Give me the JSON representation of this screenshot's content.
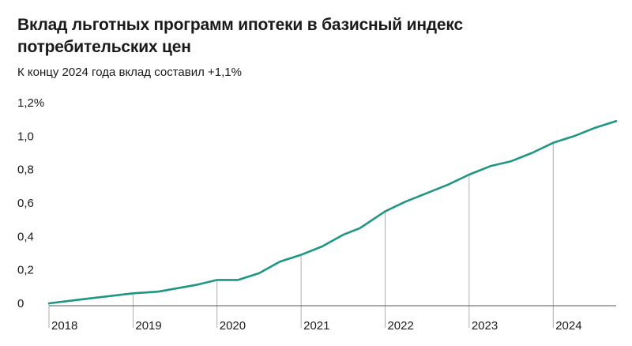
{
  "header": {
    "title": "Вклад льготных программ ипотеки в базисный индекс потребительских цен",
    "subtitle": "К концу 2024 года вклад составил +1,1%"
  },
  "colors": {
    "line": "#1f9683",
    "axis": "#555555",
    "grid": "#9a9a9a"
  },
  "chart_data": {
    "type": "line",
    "title": "Вклад льготных программ ипотеки в базисный индекс потребительских цен",
    "subtitle": "К концу 2024 года вклад составил +1,1%",
    "xlabel": "",
    "ylabel": "",
    "ylim": [
      0,
      1.2
    ],
    "xlim": [
      2018,
      2024.75
    ],
    "y_ticks": [
      {
        "value": 0,
        "label": "0"
      },
      {
        "value": 0.2,
        "label": "0,2"
      },
      {
        "value": 0.4,
        "label": "0,4"
      },
      {
        "value": 0.6,
        "label": "0,6"
      },
      {
        "value": 0.8,
        "label": "0,8"
      },
      {
        "value": 1.0,
        "label": "1,0"
      },
      {
        "value": 1.2,
        "label": "1,2%"
      }
    ],
    "x_ticks": [
      {
        "value": 2018,
        "label": "2018"
      },
      {
        "value": 2019,
        "label": "2019"
      },
      {
        "value": 2020,
        "label": "2020"
      },
      {
        "value": 2021,
        "label": "2021"
      },
      {
        "value": 2022,
        "label": "2022"
      },
      {
        "value": 2023,
        "label": "2023"
      },
      {
        "value": 2024,
        "label": "2024"
      }
    ],
    "series": [
      {
        "name": "Вклад льготных программ ипотеки",
        "x": [
          2018,
          2018.5,
          2019,
          2019.3,
          2019.75,
          2020,
          2020.25,
          2020.5,
          2020.75,
          2021,
          2021.25,
          2021.5,
          2021.7,
          2022,
          2022.25,
          2022.5,
          2022.75,
          2023,
          2023.25,
          2023.5,
          2023.75,
          2024,
          2024.25,
          2024.5,
          2024.75
        ],
        "values": [
          0.0,
          0.03,
          0.06,
          0.07,
          0.11,
          0.14,
          0.14,
          0.18,
          0.25,
          0.29,
          0.34,
          0.41,
          0.45,
          0.55,
          0.61,
          0.66,
          0.71,
          0.77,
          0.82,
          0.85,
          0.9,
          0.96,
          1.0,
          1.05,
          1.09
        ]
      }
    ]
  }
}
